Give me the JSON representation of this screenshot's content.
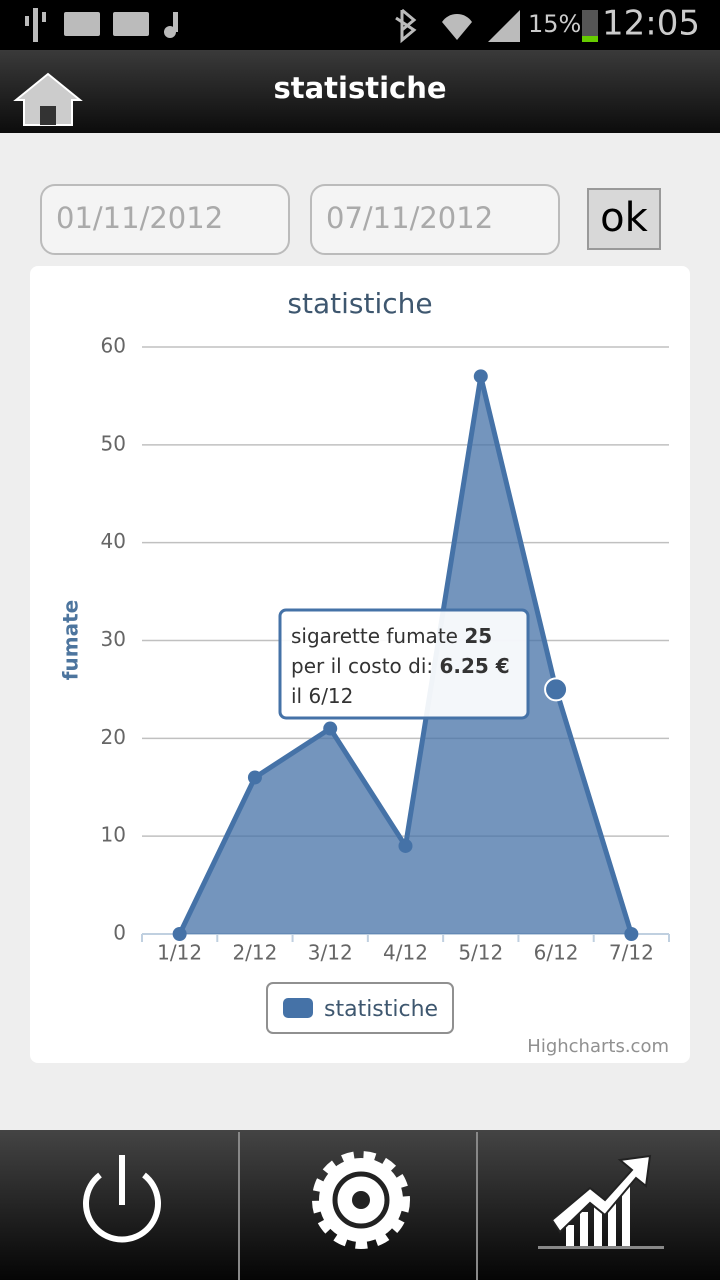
{
  "status_bar": {
    "battery": "15%",
    "time": "12:05"
  },
  "header": {
    "title": "statistiche"
  },
  "form": {
    "date_from": "01/11/2012",
    "date_to": "07/11/2012",
    "button": "ok"
  },
  "chart_data": {
    "type": "area",
    "title": "statistiche",
    "y_label": "fumate",
    "categories": [
      "1/12",
      "2/12",
      "3/12",
      "4/12",
      "5/12",
      "6/12",
      "7/12"
    ],
    "series": [
      {
        "name": "statistiche",
        "color": "#4572a7",
        "values": [
          0,
          16,
          21,
          9,
          57,
          25,
          0
        ]
      }
    ],
    "ylim": [
      0,
      60
    ],
    "yticks": [
      0,
      10,
      20,
      30,
      40,
      50,
      60
    ],
    "grid": true,
    "legend": "bottom",
    "tooltip": {
      "label": "sigarette fumate",
      "value": 25,
      "cost_label": "per il costo di:",
      "cost": "6.25 €",
      "date": "il 6/12"
    },
    "credits": "Highcharts.com"
  }
}
